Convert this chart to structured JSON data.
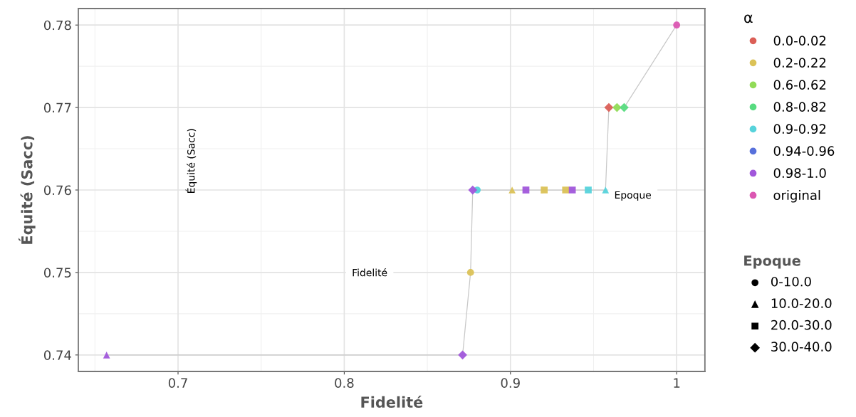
{
  "chart_data": {
    "type": "scatter",
    "xlabel": "Fidelité",
    "ylabel": "Équité (Sacc)",
    "legend_title": "α",
    "xlim": [
      0.64,
      1.017
    ],
    "ylim": [
      0.738,
      0.782
    ],
    "xticks": [
      0.7,
      0.8,
      0.9,
      {
        "value": 1.0,
        "label": "1"
      }
    ],
    "yticks": [
      0.74,
      0.75,
      0.76,
      0.77,
      0.78
    ],
    "grid": true,
    "legend": "right",
    "series": [
      {
        "name": "0.0-0.02",
        "color": "#db5f57",
        "marker": "diamond",
        "x": [
          0.9592
        ],
        "values": [
          0.77
        ]
      },
      {
        "name": "0.2-0.22",
        "color": "#dbc257",
        "marker": "circle",
        "x": [
          0.876
        ],
        "values": [
          0.75
        ]
      },
      {
        "color": "#dbc257",
        "marker": "triangle",
        "x": [
          0.901
        ],
        "values": [
          0.76
        ]
      },
      {
        "color": "#dbc257",
        "marker": "square",
        "x": [
          0.9203,
          0.9332
        ],
        "values": [
          0.76,
          0.76
        ]
      },
      {
        "name": "0.6-0.62",
        "color": "#91db57",
        "marker": "diamond",
        "x": [
          0.9641
        ],
        "values": [
          0.77
        ]
      },
      {
        "name": "0.8-0.82",
        "color": "#57db80",
        "marker": "diamond",
        "x": [
          0.9684
        ],
        "values": [
          0.77
        ]
      },
      {
        "name": "0.9-0.92",
        "color": "#57d3db",
        "marker": "circle",
        "x": [
          0.88
        ],
        "values": [
          0.76
        ]
      },
      {
        "color": "#57d3db",
        "marker": "square",
        "x": [
          0.9468
        ],
        "values": [
          0.76
        ]
      },
      {
        "color": "#57d3db",
        "marker": "triangle",
        "x": [
          0.9572
        ],
        "values": [
          0.76
        ]
      },
      {
        "name": "0.94-0.96",
        "color": "#5770db",
        "marker": "circle"
      },
      {
        "name": "0.98-1.0",
        "color": "#a157db",
        "marker": "triangle",
        "x": [
          0.657
        ],
        "values": [
          0.74
        ]
      },
      {
        "color": "#a157db",
        "marker": "diamond",
        "x": [
          0.8712,
          0.8773
        ],
        "values": [
          0.74,
          0.76
        ]
      },
      {
        "color": "#a157db",
        "marker": "square",
        "x": [
          0.9093,
          0.9372
        ],
        "values": [
          0.76,
          0.76
        ]
      },
      {
        "name": "original",
        "color": "#db57b2",
        "marker": "circle",
        "x": [
          1.0
        ],
        "values": [
          0.78
        ]
      },
      {
        "type": "line",
        "color": "#c8c8c8",
        "marker": "none",
        "x": [
          0.657,
          0.8712,
          0.876,
          0.8773,
          0.9572,
          0.9592,
          0.9684,
          1.0
        ],
        "values": [
          0.74,
          0.74,
          0.75,
          0.76,
          0.76,
          0.77,
          0.77,
          0.78
        ]
      }
    ],
    "annotations": [
      "Équité (Sacc)",
      "Fidelité",
      "Epoque",
      "Epoque",
      "0-10.0",
      "10.0-20.0",
      "20.0-30.0",
      "30.0-40.0"
    ]
  }
}
